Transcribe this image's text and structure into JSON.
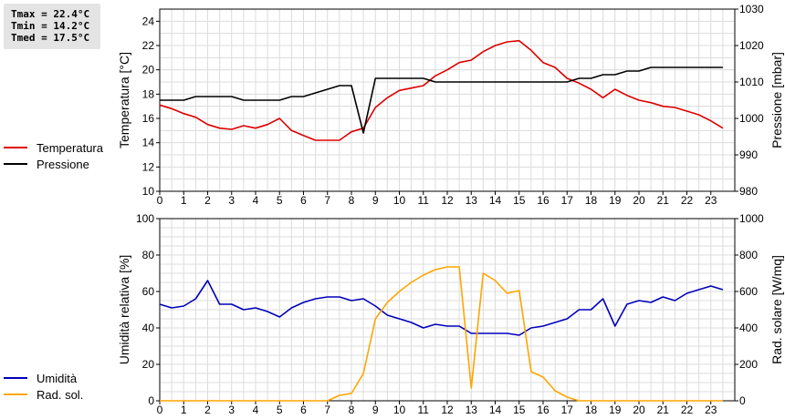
{
  "stats": {
    "tmax": "Tmax = 22.4°C",
    "tmin": "Tmin = 14.2°C",
    "tmed": "Tmed = 17.5°C"
  },
  "colors": {
    "temperatura": "#dd0000",
    "pressione": "#000000",
    "umidita": "#0000bb",
    "radiazione": "#ffa500",
    "grid": "#dcdcdc"
  },
  "legends": {
    "top": [
      {
        "label": "Temperatura",
        "color": "#dd0000"
      },
      {
        "label": "Pressione",
        "color": "#000000"
      }
    ],
    "bottom": [
      {
        "label": "Umidità",
        "color": "#0000bb"
      },
      {
        "label": "Rad. sol.",
        "color": "#ffa500"
      }
    ]
  },
  "chart_data": [
    {
      "type": "line",
      "ylabel": "Temperatura [°C]",
      "y2label": "Pressione [mbar]",
      "xlim": [
        0,
        24
      ],
      "ylim": [
        10,
        25
      ],
      "y2lim": [
        980,
        1030
      ],
      "xticks": [
        "0",
        "1",
        "2",
        "3",
        "4",
        "5",
        "6",
        "7",
        "8",
        "9",
        "10",
        "11",
        "12",
        "13",
        "14",
        "15",
        "16",
        "17",
        "18",
        "19",
        "20",
        "21",
        "22",
        "23"
      ],
      "yticks": [
        "10",
        "12",
        "14",
        "16",
        "18",
        "20",
        "22",
        "24"
      ],
      "y2ticks": [
        "980",
        "990",
        "1000",
        "1010",
        "1020",
        "1030"
      ],
      "grid": true,
      "series": [
        {
          "name": "Temperatura",
          "axis": "left",
          "color": "#dd0000",
          "x": [
            0,
            0.5,
            1,
            1.5,
            2,
            2.5,
            3,
            3.5,
            4,
            4.5,
            5,
            5.5,
            6,
            6.5,
            7,
            7.5,
            8,
            8.5,
            9,
            9.5,
            10,
            10.5,
            11,
            11.5,
            12,
            12.5,
            13,
            13.5,
            14,
            14.5,
            15,
            15.5,
            16,
            16.5,
            17,
            17.5,
            18,
            18.5,
            19,
            19.5,
            20,
            20.5,
            21,
            21.5,
            22,
            22.5,
            23,
            23.5
          ],
          "y": [
            17.1,
            16.8,
            16.4,
            16.1,
            15.5,
            15.2,
            15.1,
            15.4,
            15.2,
            15.5,
            16.0,
            15.0,
            14.6,
            14.2,
            14.2,
            14.2,
            14.9,
            15.2,
            16.9,
            17.7,
            18.3,
            18.5,
            18.7,
            19.5,
            20.0,
            20.6,
            20.8,
            21.5,
            22.0,
            22.3,
            22.4,
            21.6,
            20.6,
            20.2,
            19.3,
            18.9,
            18.4,
            17.7,
            18.4,
            17.9,
            17.5,
            17.3,
            17.0,
            16.9,
            16.6,
            16.3,
            15.8,
            15.2
          ]
        },
        {
          "name": "Pressione",
          "axis": "right",
          "color": "#000000",
          "x": [
            0,
            1,
            1.5,
            3,
            3.5,
            5,
            5.5,
            6,
            7,
            7.5,
            8,
            8.5,
            9,
            10,
            11,
            11.5,
            12,
            13,
            14,
            15,
            16,
            17,
            17.5,
            18,
            18.5,
            19,
            19.5,
            20,
            20.5,
            21,
            22,
            23,
            23.5
          ],
          "y": [
            1005,
            1005,
            1006,
            1006,
            1005,
            1005,
            1006,
            1006,
            1008,
            1009,
            1009,
            996,
            1011,
            1011,
            1011,
            1010,
            1010,
            1010,
            1010,
            1010,
            1010,
            1010,
            1011,
            1011,
            1012,
            1012,
            1013,
            1013,
            1014,
            1014,
            1014,
            1014,
            1014
          ]
        }
      ]
    },
    {
      "type": "line",
      "ylabel": "Umidità relativa [%]",
      "y2label": "Rad. solare [W/mq]",
      "xlim": [
        0,
        24
      ],
      "ylim": [
        0,
        100
      ],
      "y2lim": [
        0,
        1000
      ],
      "xticks": [
        "0",
        "1",
        "2",
        "3",
        "4",
        "5",
        "6",
        "7",
        "8",
        "9",
        "10",
        "11",
        "12",
        "13",
        "14",
        "15",
        "16",
        "17",
        "18",
        "19",
        "20",
        "21",
        "22",
        "23"
      ],
      "yticks": [
        "0",
        "20",
        "40",
        "60",
        "80",
        "100"
      ],
      "y2ticks": [
        "0",
        "200",
        "400",
        "600",
        "800",
        "1000"
      ],
      "grid": true,
      "series": [
        {
          "name": "Umidità",
          "axis": "left",
          "color": "#0000bb",
          "x": [
            0,
            0.5,
            1,
            1.5,
            2,
            2.5,
            3,
            3.5,
            4,
            4.5,
            5,
            5.5,
            6,
            6.5,
            7,
            7.5,
            8,
            8.5,
            9,
            9.5,
            10,
            10.5,
            11,
            11.5,
            12,
            12.5,
            13,
            13.5,
            14,
            14.5,
            15,
            15.5,
            16,
            16.5,
            17,
            17.5,
            18,
            18.5,
            19,
            19.5,
            20,
            20.5,
            21,
            21.5,
            22,
            22.5,
            23,
            23.5
          ],
          "y": [
            53,
            51,
            52,
            56,
            66,
            53,
            53,
            50,
            51,
            49,
            46,
            51,
            54,
            56,
            57,
            57,
            55,
            56,
            52,
            47,
            45,
            43,
            40,
            42,
            41,
            41,
            37,
            37,
            37,
            37,
            36,
            40,
            41,
            43,
            45,
            50,
            50,
            56,
            41,
            53,
            55,
            54,
            57,
            55,
            59,
            61,
            63,
            61
          ]
        },
        {
          "name": "Rad. sol.",
          "axis": "right",
          "color": "#ffa500",
          "x": [
            0,
            7,
            7.5,
            8,
            8.5,
            9,
            9.5,
            10,
            10.5,
            11,
            11.5,
            12,
            12.5,
            13,
            13.5,
            14,
            14.5,
            15,
            15.5,
            16,
            16.5,
            17,
            17.5,
            18,
            23.5
          ],
          "y": [
            0,
            0,
            30,
            40,
            150,
            450,
            540,
            600,
            650,
            690,
            720,
            735,
            735,
            70,
            700,
            660,
            590,
            605,
            160,
            130,
            55,
            20,
            0,
            0,
            0
          ]
        }
      ]
    }
  ]
}
